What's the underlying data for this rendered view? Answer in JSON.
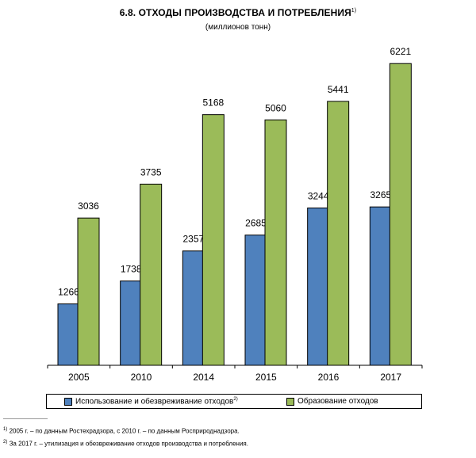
{
  "header": {
    "title": "6.8. ОТХОДЫ ПРОИЗВОДСТВА И ПОТРЕБЛЕНИЯ",
    "title_note": "1)",
    "subtitle": "(миллионов тонн)"
  },
  "chart_data": {
    "type": "bar",
    "categories": [
      "2005",
      "2010",
      "2014",
      "2015",
      "2016",
      "2017"
    ],
    "series": [
      {
        "name": "Использование и обезвреживание отходов",
        "name_note": "2)",
        "color": "#4f81bd",
        "values": [
          1266,
          1738,
          2357,
          2685,
          3244,
          3265
        ]
      },
      {
        "name": "Образование отходов",
        "color": "#9bbb59",
        "values": [
          3036,
          3735,
          5168,
          5060,
          5441,
          6221
        ]
      }
    ],
    "ylim": [
      0,
      6600
    ],
    "grid": false,
    "legend_position": "bottom"
  },
  "footnotes": [
    {
      "mark": "1)",
      "text": " 2005 г. – по данным Ростехрадзора, с 2010 г. – по данным Росприроднадзора."
    },
    {
      "mark": "2)",
      "text": " За 2017 г. – утилизация и обезвреживание отходов производства и потребления."
    }
  ]
}
